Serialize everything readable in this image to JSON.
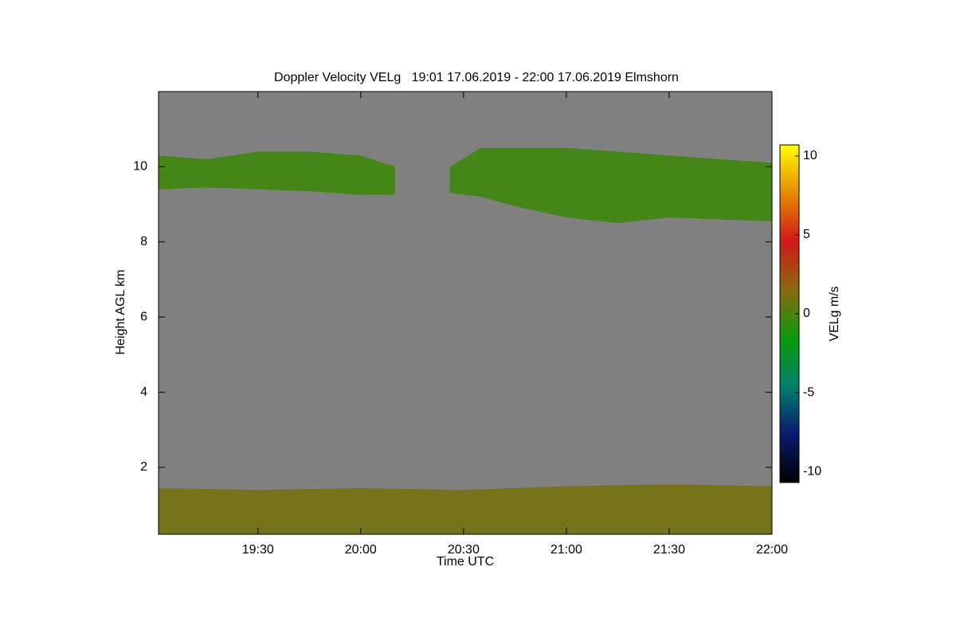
{
  "chart_data": {
    "type": "time-height",
    "title": "Doppler Velocity VELg   19:01 17.06.2019 - 22:00 17.06.2019 Elmshorn",
    "xlabel": "Time UTC",
    "ylabel": "Height AGL km",
    "colorbar_label": "VELg m/s",
    "xlim": [
      1,
      180
    ],
    "xticks": [
      {
        "value": 30,
        "label": "19:30"
      },
      {
        "value": 60,
        "label": "20:00"
      },
      {
        "value": 90,
        "label": "20:30"
      },
      {
        "value": 120,
        "label": "21:00"
      },
      {
        "value": 150,
        "label": "21:30"
      },
      {
        "value": 180,
        "label": "22:00"
      }
    ],
    "ylim": [
      0.22,
      12.0
    ],
    "yticks": [
      2,
      4,
      6,
      8,
      10
    ],
    "clim": [
      -10.7,
      10.7
    ],
    "cticks": [
      -10,
      -5,
      0,
      5,
      10
    ],
    "colorscale": [
      "#000000",
      "#0a1a6e",
      "#00806a",
      "#0a9a0a",
      "#8a6a10",
      "#d01818",
      "#e88a00",
      "#ffff00"
    ],
    "background": "#808080",
    "layers": [
      {
        "x": [
          1,
          15,
          30,
          45,
          60,
          70
        ],
        "top": [
          10.3,
          10.2,
          10.4,
          10.4,
          10.3,
          10.0
        ],
        "bottom": [
          9.4,
          9.45,
          9.4,
          9.35,
          9.25,
          9.25
        ],
        "velocity": -0.3
      },
      {
        "x": [
          86,
          95,
          105,
          120,
          135,
          150,
          165,
          180
        ],
        "top": [
          10.0,
          10.5,
          10.5,
          10.5,
          10.4,
          10.3,
          10.2,
          10.1
        ],
        "bottom": [
          9.3,
          9.2,
          8.95,
          8.65,
          8.5,
          8.65,
          8.6,
          8.55
        ],
        "velocity": -0.3
      },
      {
        "x": [
          1,
          30,
          60,
          90,
          120,
          150,
          180
        ],
        "top": [
          1.45,
          1.4,
          1.45,
          1.4,
          1.5,
          1.55,
          1.5
        ],
        "bottom": [
          0.22,
          0.22,
          0.22,
          0.22,
          0.22,
          0.22,
          0.22
        ],
        "velocity": 1.0
      }
    ]
  }
}
